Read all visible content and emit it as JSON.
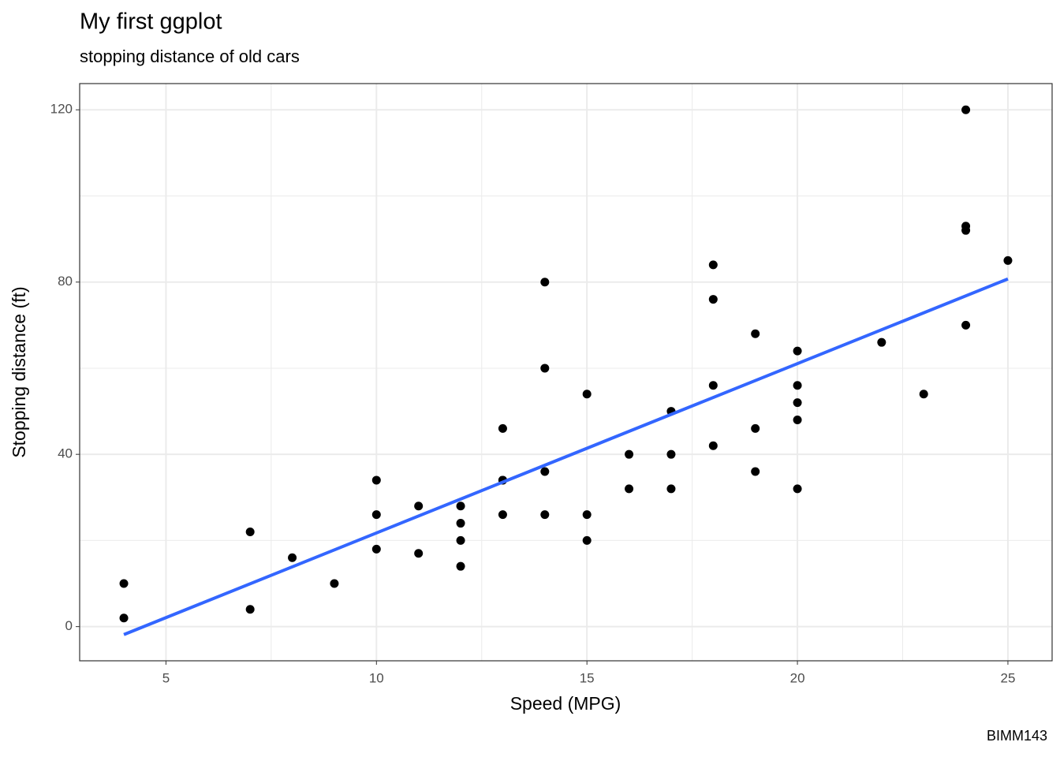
{
  "chart_data": {
    "type": "scatter",
    "title": "My first ggplot",
    "subtitle": "stopping distance of old cars",
    "x_label": "Speed (MPG)",
    "y_label": "Stopping distance (ft)",
    "caption": "BIMM143",
    "x": [
      4,
      4,
      7,
      7,
      8,
      9,
      10,
      10,
      10,
      11,
      11,
      12,
      12,
      12,
      12,
      13,
      13,
      13,
      13,
      14,
      14,
      14,
      14,
      15,
      15,
      15,
      16,
      16,
      17,
      17,
      17,
      18,
      18,
      18,
      18,
      19,
      19,
      19,
      20,
      20,
      20,
      20,
      20,
      22,
      23,
      24,
      24,
      24,
      24,
      25
    ],
    "values": [
      2,
      10,
      4,
      22,
      16,
      10,
      18,
      26,
      34,
      17,
      28,
      14,
      20,
      24,
      28,
      26,
      34,
      34,
      46,
      26,
      36,
      60,
      80,
      20,
      26,
      54,
      32,
      40,
      32,
      40,
      50,
      42,
      56,
      76,
      84,
      36,
      46,
      68,
      32,
      48,
      52,
      56,
      64,
      66,
      54,
      70,
      92,
      93,
      120,
      85
    ],
    "color": "#000000",
    "trend": {
      "type": "line",
      "x": [
        4,
        25
      ],
      "values": [
        -1.85,
        80.73
      ],
      "color": "#3366ff"
    },
    "xlim": [
      2.95,
      26.05
    ],
    "ylim": [
      -7.94,
      126.09
    ],
    "xticks": [
      5,
      10,
      15,
      20,
      25
    ],
    "yticks": [
      0,
      40,
      80,
      120
    ],
    "grid": true
  }
}
